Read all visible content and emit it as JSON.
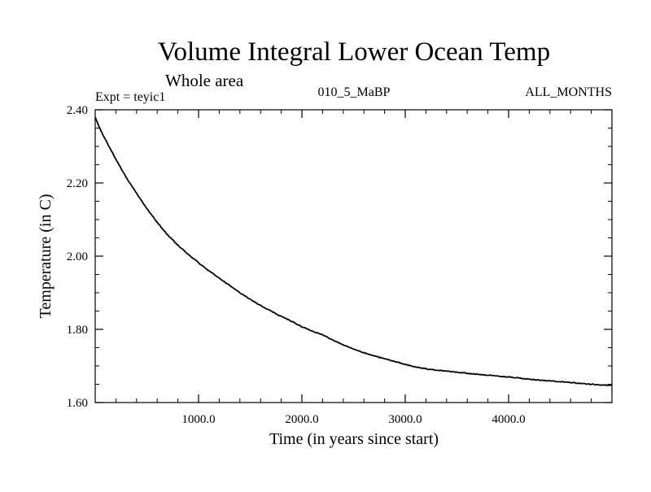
{
  "chart_data": {
    "type": "line",
    "title": "Volume Integral Lower Ocean Temp",
    "subtitle": "Whole area",
    "annotations": {
      "experiment": "Expt = teyic1",
      "run": "010_5_MaBP",
      "months": "ALL_MONTHS"
    },
    "xlabel": "Time (in years since start)",
    "ylabel": "Temperature (in C)",
    "xlim": [
      0,
      5000
    ],
    "ylim": [
      1.6,
      2.4
    ],
    "x_ticks": [
      1000,
      2000,
      3000,
      4000
    ],
    "x_tick_labels": [
      "1000.0",
      "2000.0",
      "3000.0",
      "4000.0"
    ],
    "y_ticks": [
      1.6,
      1.8,
      2.0,
      2.2,
      2.4
    ],
    "y_tick_labels": [
      "1.60",
      "1.80",
      "2.00",
      "2.20",
      "2.40"
    ],
    "x_minor_step": 200,
    "y_minor_step": 0.05,
    "grid": false,
    "series": [
      {
        "name": "Volume Integral Lower Ocean Temp",
        "color": "#000000",
        "x": [
          0,
          50,
          100,
          200,
          300,
          400,
          500,
          600,
          700,
          800,
          900,
          1000,
          1100,
          1200,
          1300,
          1400,
          1500,
          1600,
          1700,
          1800,
          1900,
          2000,
          2100,
          2200,
          2300,
          2400,
          2500,
          2600,
          2700,
          2800,
          2900,
          3000,
          3100,
          3200,
          3300,
          3400,
          3500,
          3600,
          3700,
          3800,
          3900,
          4000,
          4100,
          4200,
          4300,
          4400,
          4500,
          4600,
          4700,
          4800,
          4900,
          5000
        ],
        "values": [
          2.38,
          2.345,
          2.318,
          2.265,
          2.215,
          2.172,
          2.13,
          2.092,
          2.058,
          2.03,
          2.005,
          1.982,
          1.96,
          1.94,
          1.92,
          1.9,
          1.882,
          1.865,
          1.85,
          1.835,
          1.822,
          1.807,
          1.795,
          1.785,
          1.77,
          1.758,
          1.746,
          1.736,
          1.727,
          1.72,
          1.712,
          1.704,
          1.697,
          1.692,
          1.689,
          1.686,
          1.683,
          1.68,
          1.677,
          1.675,
          1.672,
          1.67,
          1.667,
          1.664,
          1.661,
          1.659,
          1.657,
          1.655,
          1.652,
          1.65,
          1.648,
          1.647
        ]
      }
    ]
  }
}
